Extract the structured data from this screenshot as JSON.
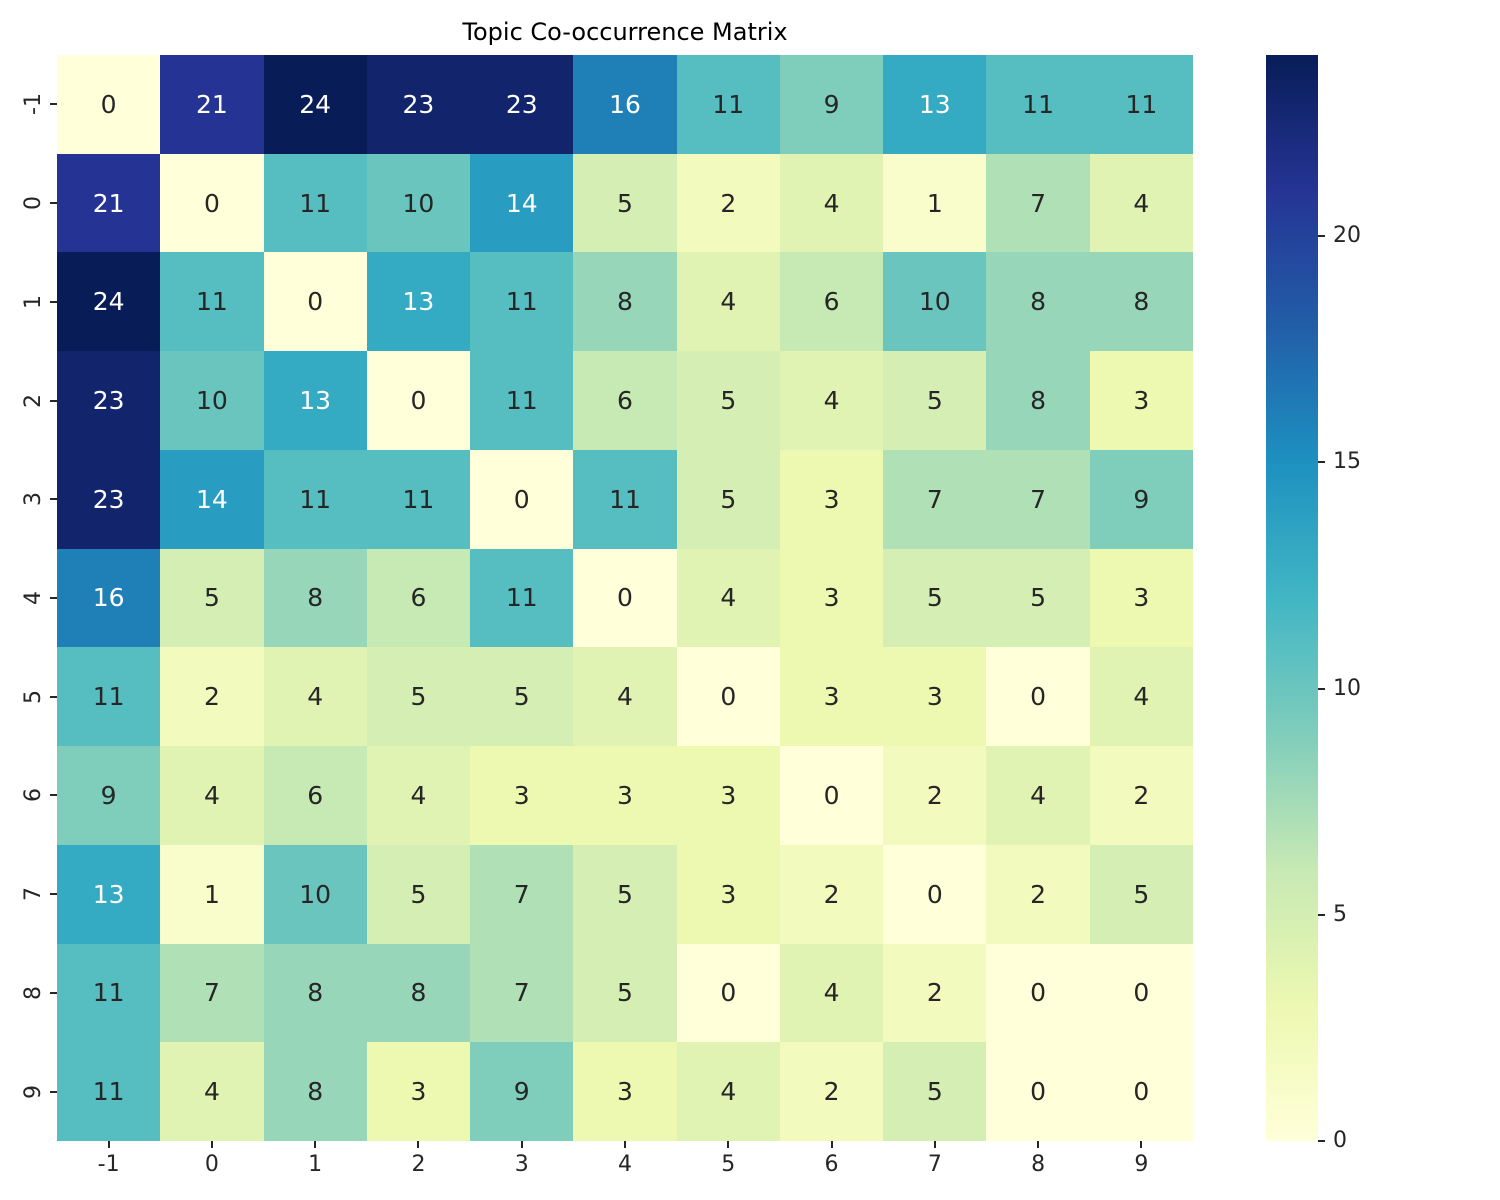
{
  "figure": {
    "background": "#ffffff",
    "text_color": "#262626"
  },
  "chart_data": {
    "type": "heatmap",
    "title": "Topic Co-occurrence Matrix",
    "x_tick_labels": [
      "-1",
      "0",
      "1",
      "2",
      "3",
      "4",
      "5",
      "6",
      "7",
      "8",
      "9"
    ],
    "y_tick_labels": [
      "-1",
      "0",
      "1",
      "2",
      "3",
      "4",
      "5",
      "6",
      "7",
      "8",
      "9"
    ],
    "matrix": [
      [
        0,
        21,
        24,
        23,
        23,
        16,
        11,
        9,
        13,
        11,
        11
      ],
      [
        21,
        0,
        11,
        10,
        14,
        5,
        2,
        4,
        1,
        7,
        4
      ],
      [
        24,
        11,
        0,
        13,
        11,
        8,
        4,
        6,
        10,
        8,
        8
      ],
      [
        23,
        10,
        13,
        0,
        11,
        6,
        5,
        4,
        5,
        8,
        3
      ],
      [
        23,
        14,
        11,
        11,
        0,
        11,
        5,
        3,
        7,
        7,
        9
      ],
      [
        16,
        5,
        8,
        6,
        11,
        0,
        4,
        3,
        5,
        5,
        3
      ],
      [
        11,
        2,
        4,
        5,
        5,
        4,
        0,
        3,
        3,
        0,
        4
      ],
      [
        9,
        4,
        6,
        4,
        3,
        3,
        3,
        0,
        2,
        4,
        2
      ],
      [
        13,
        1,
        10,
        5,
        7,
        5,
        3,
        2,
        0,
        2,
        5
      ],
      [
        11,
        7,
        8,
        8,
        7,
        5,
        0,
        4,
        2,
        0,
        0
      ],
      [
        11,
        4,
        8,
        3,
        9,
        3,
        4,
        2,
        5,
        0,
        0
      ]
    ],
    "annotated": true,
    "vmin": 0,
    "vmax": 24,
    "colormap": "YlGnBu",
    "colormap_stops": [
      "#ffffd9",
      "#edf8b1",
      "#c7e9b4",
      "#7fcdbb",
      "#41b6c4",
      "#1d91c0",
      "#225ea8",
      "#253494",
      "#081d58"
    ],
    "annotation_colors": {
      "light": "#ffffff",
      "dark": "#262626"
    },
    "colorbar": {
      "position": "right",
      "ticks": [
        0,
        5,
        10,
        15,
        20
      ]
    },
    "legend": "none",
    "grid": false
  }
}
